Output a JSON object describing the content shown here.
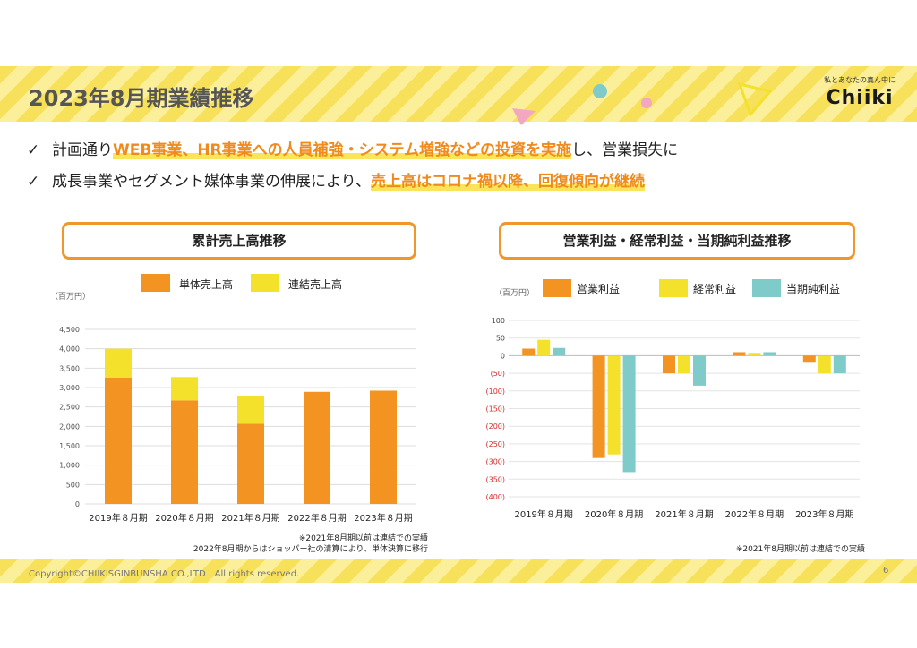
{
  "title": "2023年8月期業績推移",
  "logo": {
    "tagline": "私とあなたの真ん中に",
    "wordmark": "Chiiki"
  },
  "bullets": [
    {
      "check": "✓",
      "before": "計画通り",
      "highlight": "WEB事業、HR事業への人員補強・システム増強などの投資を実施",
      "after": "し、営業損失に"
    },
    {
      "check": "✓",
      "before": "成長事業やセグメント媒体事業の伸展により、",
      "highlight": "売上高はコロナ禍以降、回復傾向が継続",
      "after": ""
    }
  ],
  "colors": {
    "orange": "#f39422",
    "yellow": "#f3e12b",
    "teal": "#7ecbc9",
    "accent": "#f08a1c",
    "negative": "#d62c2c"
  },
  "left_panel": {
    "title": "累計売上高推移",
    "note1": "※2021年8月期以前は連結での実績",
    "note2": "2022年8月期からはショッパー社の清算により、単体決算に移行"
  },
  "right_panel": {
    "title": "営業利益・経常利益・当期純利益推移",
    "note": "※2021年8月期以前は連結での実績"
  },
  "chart_data": [
    {
      "type": "bar",
      "stacked": true,
      "title": "累計売上高推移",
      "unit_label": "（百万円）",
      "categories": [
        "2019年８月期",
        "2020年８月期",
        "2021年８月期",
        "2022年８月期",
        "2023年８月期"
      ],
      "series": [
        {
          "name": "単体売上高",
          "color": "#f39422",
          "values": [
            3260,
            2670,
            2070,
            2890,
            2920
          ]
        },
        {
          "name": "連結売上高",
          "color": "#f3e12b",
          "values": [
            740,
            600,
            720,
            0,
            0
          ]
        }
      ],
      "ylim": [
        0,
        4500
      ],
      "yticks": [
        0,
        500,
        1000,
        1500,
        2000,
        2500,
        3000,
        3500,
        4000,
        4500
      ],
      "ytick_labels": [
        "0",
        "500",
        "1,000",
        "1,500",
        "2,000",
        "2,500",
        "3,000",
        "3,500",
        "4,000",
        "4,500"
      ],
      "grid": true,
      "legend": "top"
    },
    {
      "type": "bar",
      "title": "営業利益・経常利益・当期純利益推移",
      "unit_label": "（百万円）",
      "categories": [
        "2019年８月期",
        "2020年８月期",
        "2021年８月期",
        "2022年８月期",
        "2023年８月期"
      ],
      "series": [
        {
          "name": "営業利益",
          "color": "#f39422",
          "values": [
            20,
            -290,
            -50,
            10,
            -20
          ]
        },
        {
          "name": "経常利益",
          "color": "#f3e12b",
          "values": [
            45,
            -280,
            -50,
            8,
            -50
          ]
        },
        {
          "name": "当期純利益",
          "color": "#7ecbc9",
          "values": [
            22,
            -330,
            -85,
            10,
            -50
          ]
        }
      ],
      "ylim": [
        -400,
        100
      ],
      "yticks": [
        100,
        50,
        0,
        -50,
        -100,
        -150,
        -200,
        -250,
        -300,
        -350,
        -400
      ],
      "ytick_labels": [
        "100",
        "50",
        "0",
        "(50)",
        "(100)",
        "(150)",
        "(200)",
        "(250)",
        "(300)",
        "(350)",
        "(400)"
      ],
      "grid": true,
      "legend": "top"
    }
  ],
  "footer": {
    "copyright": "Copyright©CHIIKISGINBUNSHA CO.,LTD　All rights reserved.",
    "page": "6"
  }
}
